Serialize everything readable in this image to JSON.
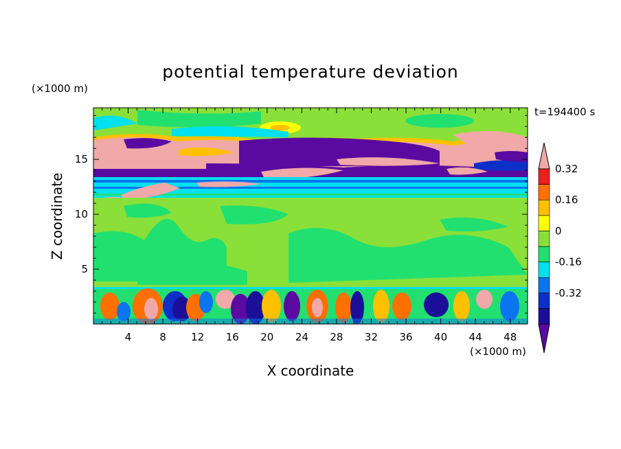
{
  "chart_data": {
    "type": "heatmap",
    "title": "potential temperature deviation",
    "xlabel": "X coordinate",
    "ylabel": "Z coordinate",
    "x_unit": "(×1000 m)",
    "y_unit": "(×1000 m)",
    "time_label": "t=194400 s",
    "xlim": [
      0,
      50
    ],
    "ylim": [
      0,
      19.7
    ],
    "x_ticks": [
      4,
      8,
      12,
      16,
      20,
      24,
      28,
      32,
      36,
      40,
      44,
      48
    ],
    "y_ticks": [
      5,
      10,
      15
    ],
    "colorbar": {
      "levels": [
        -0.48,
        -0.4,
        -0.32,
        -0.24,
        -0.16,
        -0.08,
        0,
        0.08,
        0.16,
        0.24,
        0.32,
        0.4
      ],
      "colors": [
        "#5a0aa0",
        "#1b0f9a",
        "#0c2fc8",
        "#0a75ee",
        "#00e0ee",
        "#22e070",
        "#8ae038",
        "#ffff00",
        "#ffc000",
        "#ff7000",
        "#f01e1e",
        "#f0a8a8"
      ],
      "tick_labels": [
        "-0.32",
        "-0.16",
        "0",
        "0.16",
        "0.32"
      ],
      "tick_values": [
        -0.32,
        -0.16,
        0,
        0.16,
        0.32
      ],
      "extend": "both"
    },
    "regions": [
      {
        "z": [
          0,
          3.5
        ],
        "value": "mixed, ±0.4 (convective cells)"
      },
      {
        "z": [
          3.5,
          11.5
        ],
        "value": "≈ -0.04 to +0.04"
      },
      {
        "z": [
          11.5,
          14
        ],
        "value": "≈ -0.12 (with +0.4 patches)"
      },
      {
        "z": [
          14,
          17.5
        ],
        "value": "alternating ≤ -0.4 and ≥ +0.4 layers"
      },
      {
        "z": [
          17.5,
          19.7
        ],
        "value": "≈ 0 to +0.08"
      }
    ]
  }
}
